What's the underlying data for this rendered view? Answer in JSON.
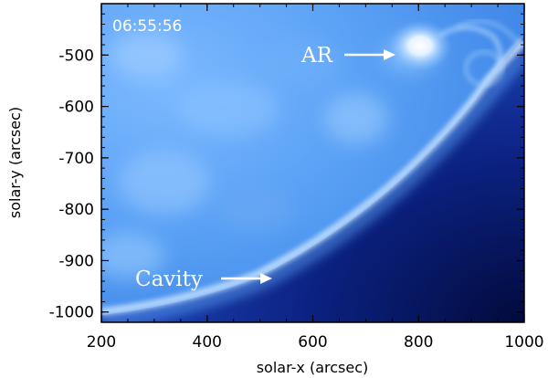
{
  "image": {
    "timestamp": "06:55:56",
    "annotations": {
      "active_region": "AR",
      "cavity": "Cavity"
    },
    "colors": {
      "disk_light": "#8fc6ff",
      "disk_mid": "#4f97f2",
      "limb_bright": "#cfe7ff",
      "off_limb": "#0a1f78",
      "off_limb_dark": "#020a3c",
      "frame": "#000000"
    }
  },
  "axes": {
    "xlabel": "solar-x (arcsec)",
    "ylabel": "solar-y (arcsec)",
    "xlim": [
      200,
      1000
    ],
    "ylim": [
      -1020,
      -400
    ],
    "xticks": [
      "200",
      "400",
      "600",
      "800",
      "1000"
    ],
    "yticks": [
      "-500",
      "-600",
      "-700",
      "-800",
      "-900",
      "-1000"
    ]
  }
}
